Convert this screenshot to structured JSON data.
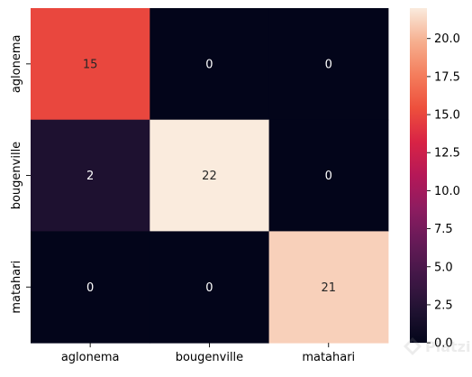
{
  "chart_data": {
    "type": "heatmap",
    "title": "",
    "xlabel": "",
    "ylabel": "",
    "x_categories": [
      "aglonema",
      "bougenville",
      "matahari"
    ],
    "y_categories": [
      "aglonema",
      "bougenville",
      "matahari"
    ],
    "values": [
      [
        15,
        0,
        0
      ],
      [
        2,
        22,
        0
      ],
      [
        0,
        0,
        21
      ]
    ],
    "colorbar": {
      "min": 0,
      "max": 22,
      "ticks": [
        "0.0",
        "2.5",
        "5.0",
        "7.5",
        "10.0",
        "12.5",
        "15.0",
        "17.5",
        "20.0"
      ],
      "colormap": "rocket"
    },
    "annotation_colors": {
      "on_dark": "#ffffff",
      "on_light": "#262626"
    }
  },
  "watermark": {
    "text": "Platzi"
  }
}
